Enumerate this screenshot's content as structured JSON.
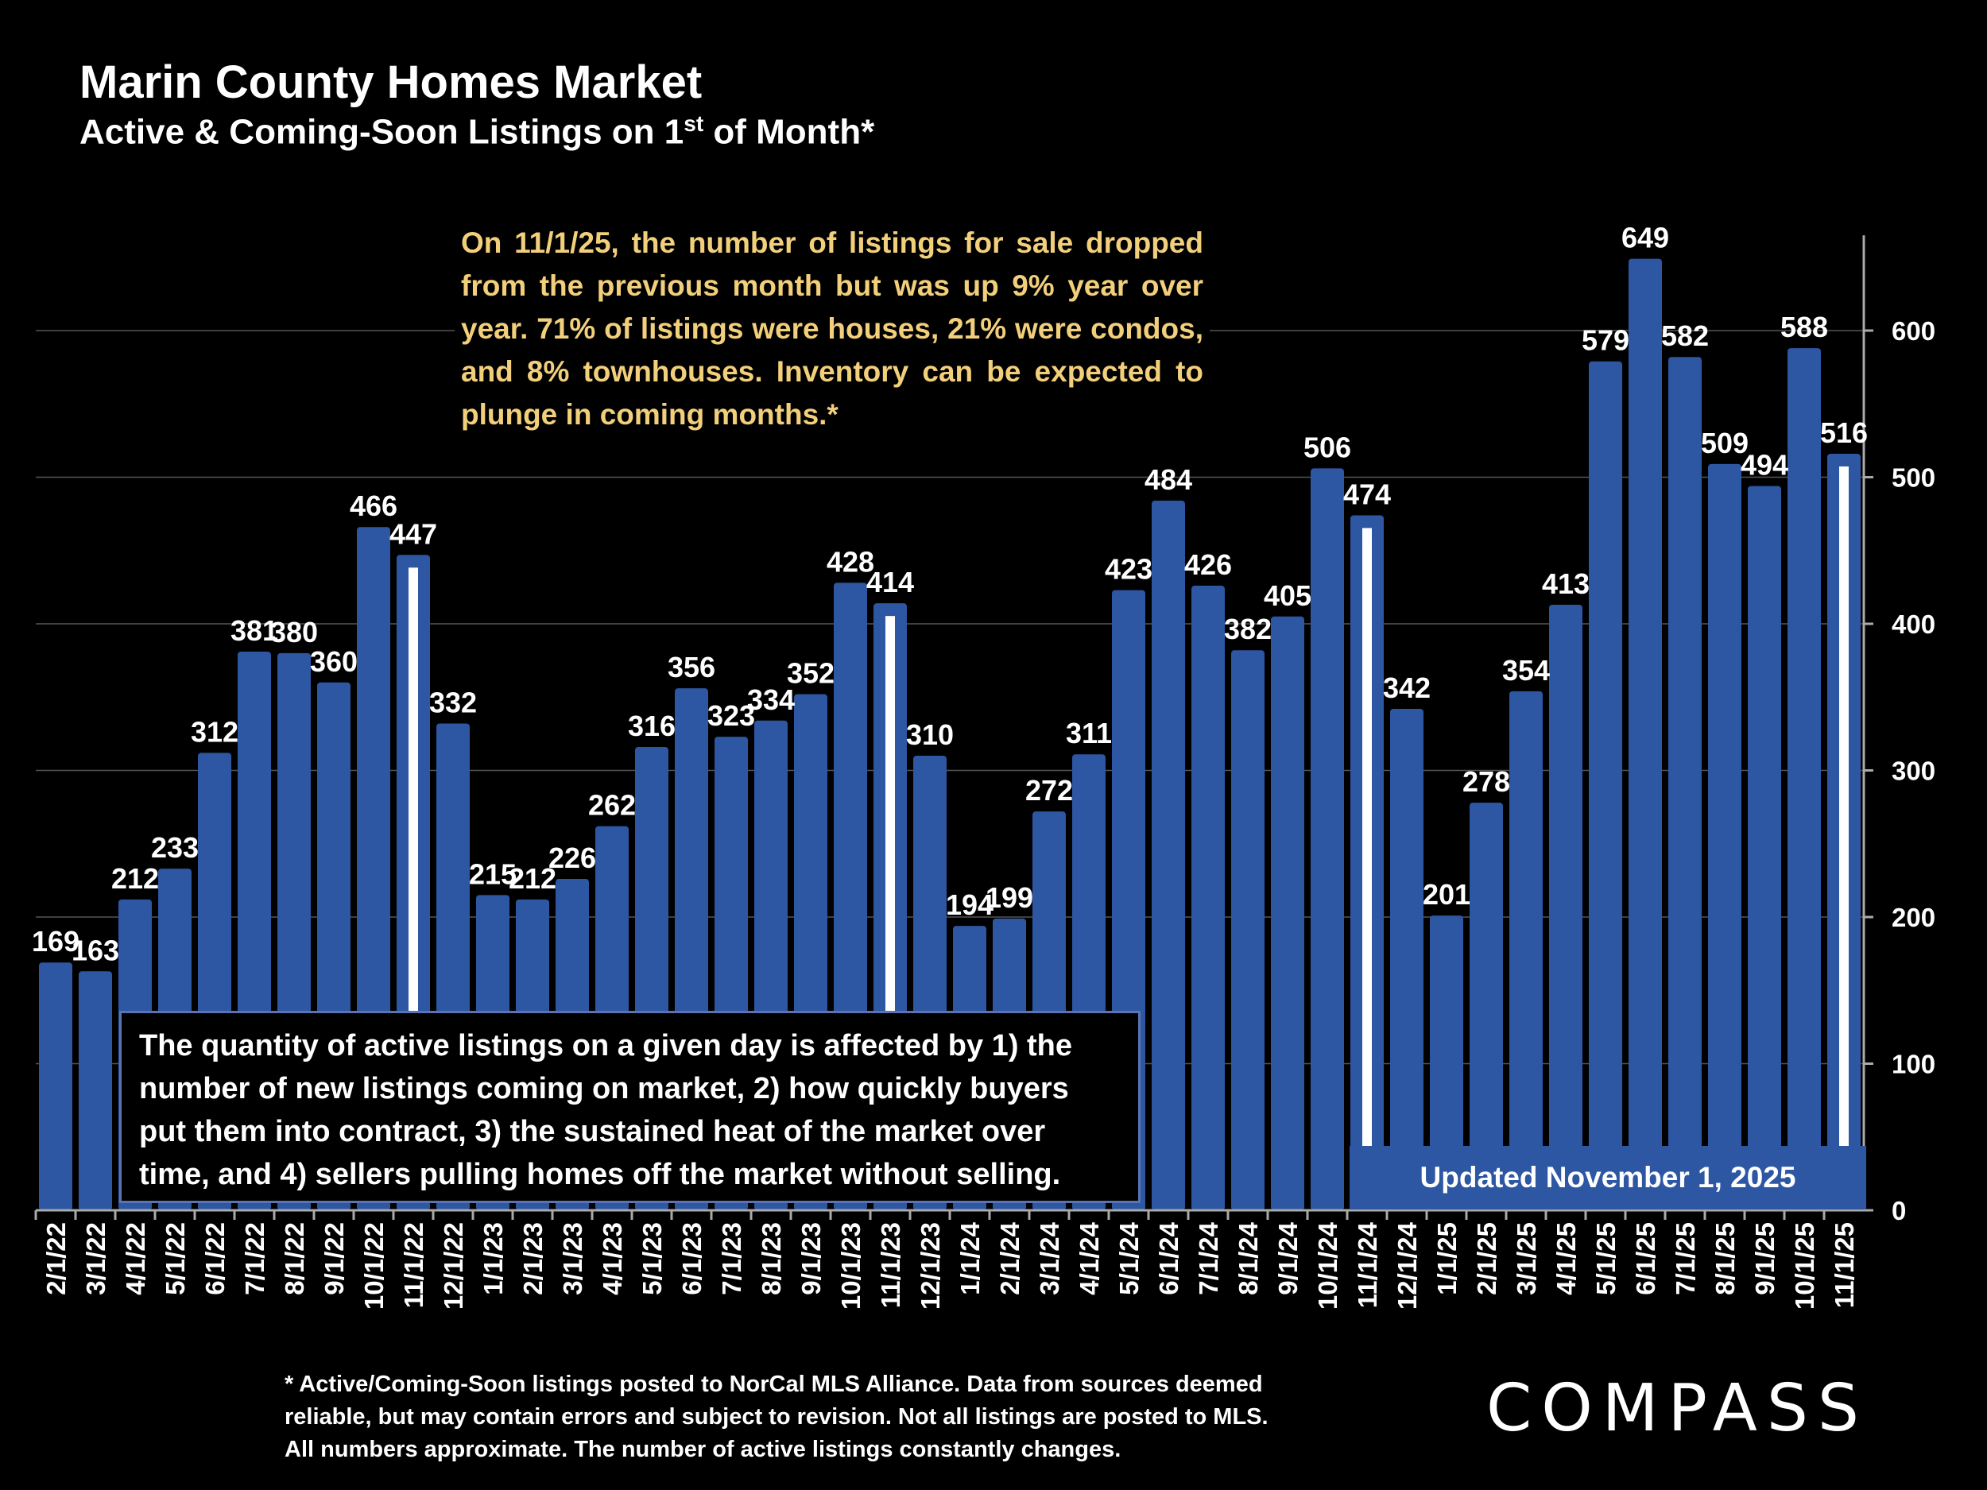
{
  "header": {
    "title": "Marin County Homes Market",
    "subtitle_main": "Active & Coming-Soon Listings on 1",
    "subtitle_sup": "st",
    "subtitle_end": " of Month*"
  },
  "annotations": {
    "note": "On 11/1/25, the number of listings for sale dropped from the previous month but was up 9% year over year. 71% of listings were houses, 21% were condos, and 8% townhouses. Inventory can be expected to plunge in coming months.*",
    "explanation": "The quantity of active listings on a given day is affected by 1) the number of new listings coming on market, 2) how quickly buyers put them into contract, 3) the sustained heat of the market over time, and 4) sellers pulling homes off the market without selling.",
    "updated": "Updated November 1, 2025",
    "footnote_lines": [
      "* Active/Coming-Soon listings posted to NorCal MLS Alliance.  Data from sources deemed",
      "reliable, but may contain errors and subject to revision.  Not all listings are posted to MLS.",
      "All numbers approximate. The number of active listings constantly changes."
    ],
    "logo": "COMPASS"
  },
  "colors": {
    "bar": "#2d56a3",
    "note_text": "#f2cf7a",
    "marker": "#ffffff",
    "background": "#000000"
  },
  "chart_data": {
    "type": "bar",
    "categories": [
      "2/1/22",
      "3/1/22",
      "4/1/22",
      "5/1/22",
      "6/1/22",
      "7/1/22",
      "8/1/22",
      "9/1/22",
      "10/1/22",
      "11/1/22",
      "12/1/22",
      "1/1/23",
      "2/1/23",
      "3/1/23",
      "4/1/23",
      "5/1/23",
      "6/1/23",
      "7/1/23",
      "8/1/23",
      "9/1/23",
      "10/1/23",
      "11/1/23",
      "12/1/23",
      "1/1/24",
      "2/1/24",
      "3/1/24",
      "4/1/24",
      "5/1/24",
      "6/1/24",
      "7/1/24",
      "8/1/24",
      "9/1/24",
      "10/1/24",
      "11/1/24",
      "12/1/24",
      "1/1/25",
      "2/1/25",
      "3/1/25",
      "4/1/25",
      "5/1/25",
      "6/1/25",
      "7/1/25",
      "8/1/25",
      "9/1/25",
      "10/1/25",
      "11/1/25"
    ],
    "values": [
      169,
      163,
      212,
      233,
      312,
      381,
      380,
      360,
      466,
      447,
      332,
      215,
      212,
      226,
      262,
      316,
      356,
      323,
      334,
      352,
      428,
      414,
      310,
      194,
      199,
      272,
      311,
      423,
      484,
      426,
      382,
      405,
      506,
      474,
      342,
      201,
      278,
      354,
      413,
      579,
      649,
      582,
      509,
      494,
      588,
      516
    ],
    "highlighted_categories": [
      "11/1/22",
      "11/1/23",
      "11/1/24",
      "11/1/25"
    ],
    "yticks": [
      0,
      100,
      200,
      300,
      400,
      500,
      600
    ],
    "ylim": [
      0,
      665
    ],
    "grid": true,
    "y_axis_position": "right"
  }
}
